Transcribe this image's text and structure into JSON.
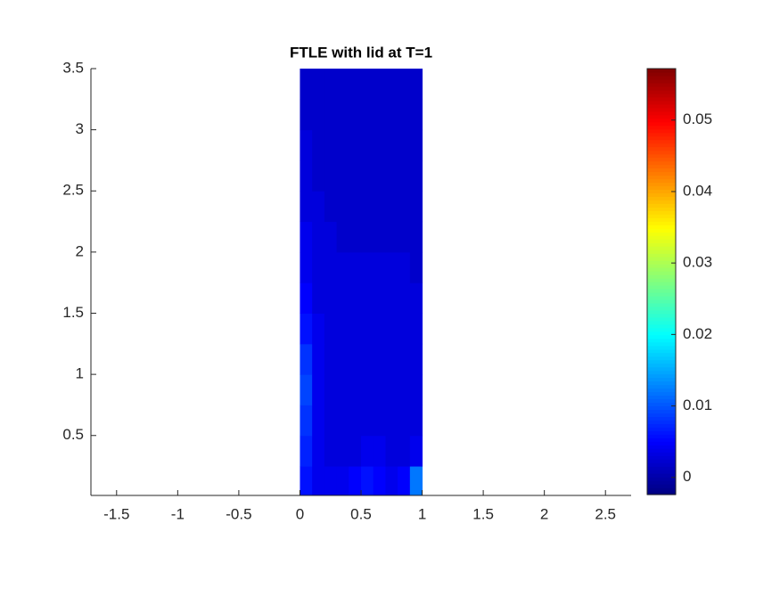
{
  "chart_data": {
    "type": "heatmap",
    "title": "FTLE with lid at T=1",
    "x": [
      0.05,
      0.15,
      0.25,
      0.35,
      0.45,
      0.55,
      0.65,
      0.75,
      0.85,
      0.95
    ],
    "y": [
      0.125,
      0.375,
      0.625,
      0.875,
      1.125,
      1.375,
      1.625,
      1.875,
      2.125,
      2.375,
      2.625,
      2.875,
      3.125,
      3.375
    ],
    "z": [
      [
        0.006,
        0.004,
        0.004,
        0.004,
        0.005,
        0.006,
        0.005,
        0.004,
        0.005,
        0.012
      ],
      [
        0.007,
        0.004,
        0.003,
        0.003,
        0.003,
        0.004,
        0.004,
        0.003,
        0.003,
        0.004
      ],
      [
        0.008,
        0.004,
        0.003,
        0.003,
        0.003,
        0.003,
        0.003,
        0.003,
        0.003,
        0.003
      ],
      [
        0.009,
        0.004,
        0.003,
        0.003,
        0.003,
        0.003,
        0.003,
        0.003,
        0.003,
        0.003
      ],
      [
        0.008,
        0.004,
        0.003,
        0.003,
        0.003,
        0.003,
        0.003,
        0.003,
        0.003,
        0.003
      ],
      [
        0.006,
        0.004,
        0.003,
        0.003,
        0.003,
        0.003,
        0.003,
        0.003,
        0.003,
        0.003
      ],
      [
        0.005,
        0.003,
        0.003,
        0.003,
        0.003,
        0.003,
        0.003,
        0.003,
        0.003,
        0.003
      ],
      [
        0.004,
        0.003,
        0.003,
        0.003,
        0.003,
        0.003,
        0.003,
        0.003,
        0.003,
        0.002
      ],
      [
        0.004,
        0.003,
        0.003,
        0.002,
        0.002,
        0.002,
        0.002,
        0.002,
        0.002,
        0.002
      ],
      [
        0.003,
        0.003,
        0.002,
        0.002,
        0.002,
        0.002,
        0.002,
        0.002,
        0.002,
        0.002
      ],
      [
        0.003,
        0.002,
        0.002,
        0.002,
        0.002,
        0.002,
        0.002,
        0.002,
        0.002,
        0.002
      ],
      [
        0.003,
        0.002,
        0.002,
        0.002,
        0.002,
        0.002,
        0.002,
        0.002,
        0.002,
        0.002
      ],
      [
        0.002,
        0.002,
        0.002,
        0.002,
        0.002,
        0.002,
        0.002,
        0.002,
        0.002,
        0.002
      ],
      [
        0.002,
        0.002,
        0.002,
        0.002,
        0.002,
        0.002,
        0.002,
        0.002,
        0.002,
        0.002
      ]
    ],
    "xlim": [
      -1.71,
      2.71
    ],
    "ylim": [
      0.01,
      3.5
    ],
    "xticks": [
      -1.5,
      -1,
      -0.5,
      0,
      0.5,
      1,
      1.5,
      2,
      2.5
    ],
    "yticks": [
      0.5,
      1,
      1.5,
      2,
      2.5,
      3,
      3.5
    ],
    "clim": [
      -0.0024,
      0.0572
    ],
    "cticks": [
      0,
      0.01,
      0.02,
      0.03,
      0.04,
      0.05
    ],
    "colormap": "jet"
  }
}
